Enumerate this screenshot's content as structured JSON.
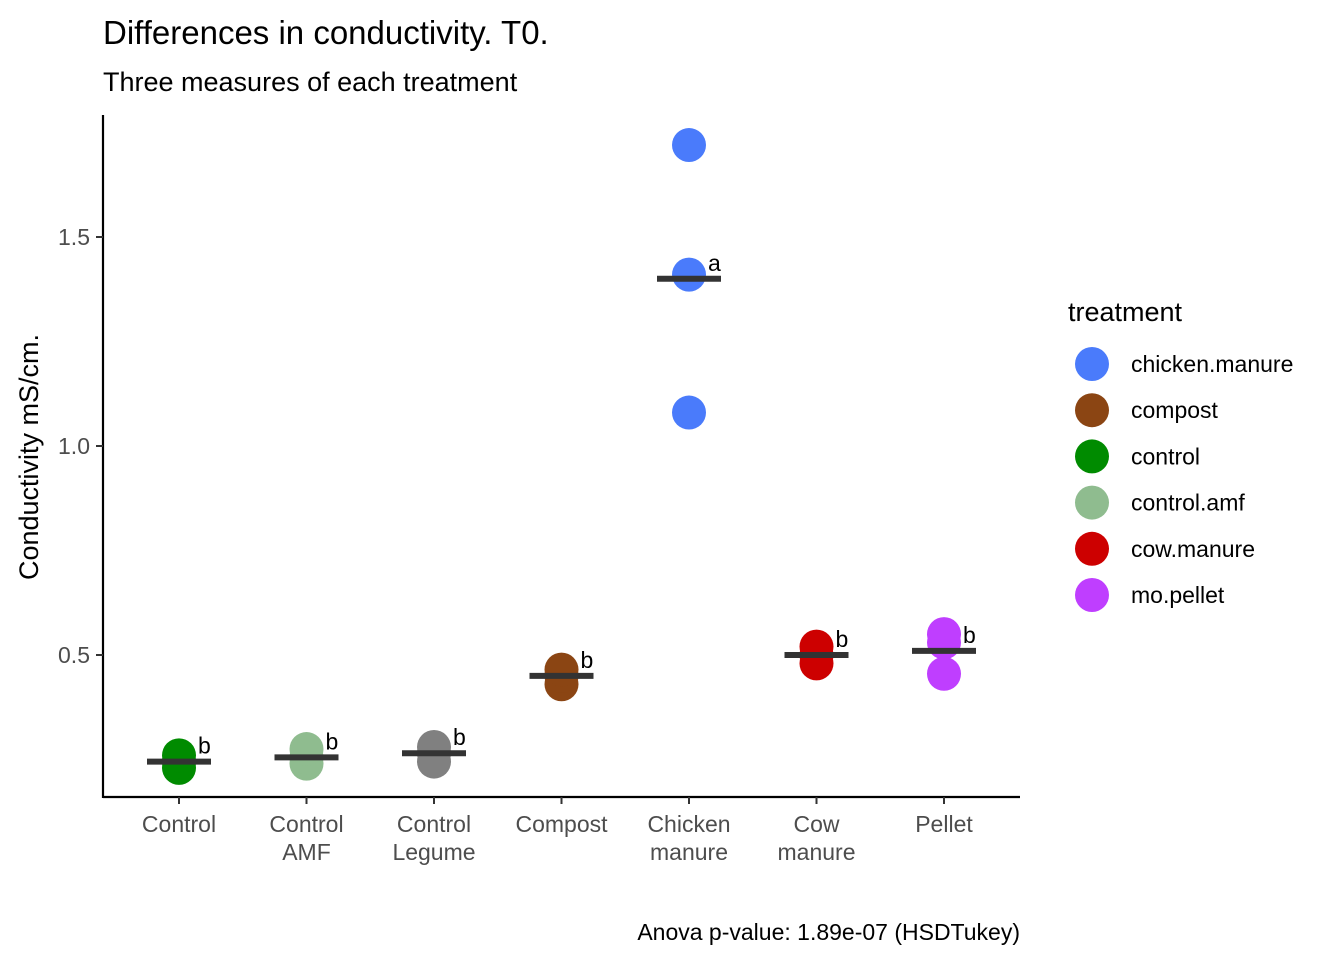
{
  "chart_data": {
    "type": "scatter",
    "title": "Differences in conductivity. T0.",
    "subtitle": "Three measures of each treatment",
    "ylabel": "Conductivity mS/cm.",
    "xlabel": "",
    "caption": "Anova p-value: 1.89e-07 (HSDTukey)",
    "ylim": [
      0.155,
      1.795
    ],
    "yticks": [
      0.5,
      1.0,
      1.5
    ],
    "ytick_labels": [
      "0.5",
      "1.0",
      "1.5"
    ],
    "grid": false,
    "legend_position": "right",
    "legend_title": "treatment",
    "legend": [
      {
        "name": "chicken.manure",
        "color": "#4a7bfb"
      },
      {
        "name": "compost",
        "color": "#8b4513"
      },
      {
        "name": "control",
        "color": "#008b00"
      },
      {
        "name": "control.amf",
        "color": "#8fbc8f"
      },
      {
        "name": "cow.manure",
        "color": "#cd0000"
      },
      {
        "name": "mo.pellet",
        "color": "#bf3eff"
      }
    ],
    "groups": [
      {
        "label": [
          "Control"
        ],
        "color": "#008b00",
        "values": [
          0.23,
          0.245,
          0.26
        ],
        "mean": 0.245,
        "letter": "b"
      },
      {
        "label": [
          "Control",
          "AMF"
        ],
        "color": "#8fbc8f",
        "values": [
          0.24,
          0.255,
          0.275
        ],
        "mean": 0.255,
        "letter": "b"
      },
      {
        "label": [
          "Control",
          "Legume"
        ],
        "color": "#808080",
        "values": [
          0.245,
          0.265,
          0.28
        ],
        "mean": 0.265,
        "letter": "b"
      },
      {
        "label": [
          "Compost"
        ],
        "color": "#8b4513",
        "values": [
          0.43,
          0.45,
          0.465
        ],
        "mean": 0.45,
        "letter": "b"
      },
      {
        "label": [
          "Chicken",
          "manure"
        ],
        "color": "#4a7bfb",
        "values": [
          1.08,
          1.41,
          1.72
        ],
        "mean": 1.4,
        "letter": "a"
      },
      {
        "label": [
          "Cow",
          "manure"
        ],
        "color": "#cd0000",
        "values": [
          0.48,
          0.5,
          0.52
        ],
        "mean": 0.5,
        "letter": "b"
      },
      {
        "label": [
          "Pellet"
        ],
        "color": "#bf3eff",
        "values": [
          0.455,
          0.53,
          0.55
        ],
        "mean": 0.51,
        "letter": "b"
      }
    ],
    "mean_bar_color": "#333333"
  }
}
